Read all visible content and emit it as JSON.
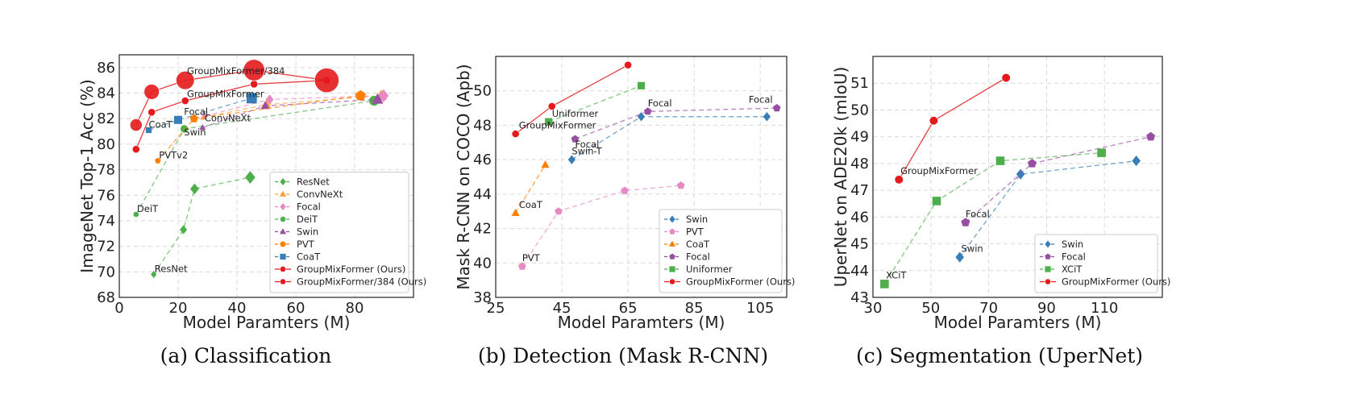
{
  "chart_data": [
    {
      "type": "scatter",
      "caption": "(a) Classification",
      "xlabel": "Model Paramters (M)",
      "ylabel": "ImageNet Top-1 Acc (%)",
      "xlim": [
        0,
        100
      ],
      "ylim": [
        68,
        87
      ],
      "xticks": [
        0,
        20,
        40,
        60,
        80
      ],
      "yticks": [
        68,
        70,
        72,
        74,
        76,
        78,
        80,
        82,
        84,
        86
      ],
      "grid": true,
      "legend_position": "lower-right",
      "series": [
        {
          "name": "ResNet",
          "color": "#4daf4a",
          "marker": "diamond",
          "points": [
            [
              11.7,
              69.8
            ],
            [
              21.8,
              73.3
            ],
            [
              25.6,
              76.5
            ],
            [
              44.5,
              77.4
            ]
          ]
        },
        {
          "name": "ConvNeXt",
          "color": "#ff9f40",
          "marker": "triangle",
          "points": [
            [
              28.6,
              82.1
            ],
            [
              50.0,
              83.1
            ],
            [
              89.0,
              83.8
            ]
          ]
        },
        {
          "name": "Focal",
          "color": "#e78ac3",
          "marker": "diamond",
          "points": [
            [
              29.1,
              82.2
            ],
            [
              51.1,
              83.5
            ],
            [
              89.8,
              83.8
            ]
          ]
        },
        {
          "name": "DeiT",
          "color": "#4daf4a",
          "marker": "circle",
          "points": [
            [
              5.7,
              74.5
            ],
            [
              22.1,
              81.2
            ],
            [
              86.6,
              83.4
            ]
          ]
        },
        {
          "name": "Swin",
          "color": "#984ea3",
          "marker": "triangle",
          "points": [
            [
              28.3,
              81.3
            ],
            [
              49.6,
              83.0
            ],
            [
              87.8,
              83.5
            ]
          ]
        },
        {
          "name": "PVT",
          "color": "#ff7f00",
          "marker": "pentagon",
          "points": [
            [
              13.1,
              78.7
            ],
            [
              25.4,
              82.0
            ],
            [
              82.0,
              83.8
            ]
          ]
        },
        {
          "name": "CoaT",
          "color": "#377eb8",
          "marker": "square",
          "points": [
            [
              10.0,
              81.1
            ],
            [
              20.0,
              81.9
            ],
            [
              45.0,
              83.6
            ]
          ]
        },
        {
          "name": "GroupMixFormer (Ours)",
          "color": "#e41a1c",
          "marker": "circle",
          "points": [
            [
              5.7,
              79.6
            ],
            [
              11.0,
              82.5
            ],
            [
              22.4,
              83.4
            ],
            [
              45.8,
              84.7
            ],
            [
              70.5,
              85.0
            ]
          ]
        },
        {
          "name": "GroupMixFormer/384 (Ours)",
          "color": "#e41a1c",
          "marker": "circle-large",
          "points": [
            [
              5.7,
              81.5
            ],
            [
              11.0,
              84.1
            ],
            [
              22.4,
              85.0
            ],
            [
              45.8,
              85.8
            ],
            [
              70.5,
              85.0
            ]
          ]
        }
      ],
      "annotations": [
        {
          "text": "GroupMixFormer/384",
          "x": 23.0,
          "y": 85.5
        },
        {
          "text": "GroupMixFormer",
          "x": 23.0,
          "y": 83.7
        },
        {
          "text": "Focal",
          "x": 22.0,
          "y": 82.3
        },
        {
          "text": "CoaT",
          "x": 10.0,
          "y": 81.3
        },
        {
          "text": "ConvNeXt",
          "x": 29.0,
          "y": 81.8
        },
        {
          "text": "Swin",
          "x": 22.0,
          "y": 80.7
        },
        {
          "text": "PVTv2",
          "x": 13.5,
          "y": 78.9
        },
        {
          "text": "DeiT",
          "x": 6.0,
          "y": 74.7
        },
        {
          "text": "ResNet",
          "x": 12.0,
          "y": 70.0
        }
      ]
    },
    {
      "type": "scatter",
      "caption": "(b) Detection (Mask R-CNN)",
      "xlabel": "Model Paramters (M)",
      "ylabel": "Mask  R-CNN on COCO (Apb)",
      "xlim": [
        25,
        113
      ],
      "ylim": [
        38,
        52
      ],
      "xticks": [
        25,
        45,
        65,
        85,
        105
      ],
      "yticks": [
        38,
        40,
        42,
        44,
        46,
        48,
        50
      ],
      "grid": true,
      "legend_position": "lower-right",
      "series": [
        {
          "name": "Swin",
          "color": "#377eb8",
          "marker": "diamond",
          "points": [
            [
              48.0,
              46.0
            ],
            [
              69.0,
              48.5
            ],
            [
              107.0,
              48.5
            ]
          ]
        },
        {
          "name": "PVT",
          "color": "#e78ac3",
          "marker": "pentagon",
          "points": [
            [
              33.0,
              39.8
            ],
            [
              44.0,
              43.0
            ],
            [
              64.0,
              44.2
            ],
            [
              81.0,
              44.5
            ]
          ]
        },
        {
          "name": "CoaT",
          "color": "#ff7f00",
          "marker": "triangle",
          "points": [
            [
              31.0,
              42.9
            ],
            [
              40.0,
              45.7
            ]
          ]
        },
        {
          "name": "Focal",
          "color": "#984ea3",
          "marker": "pentagon",
          "points": [
            [
              49.0,
              47.2
            ],
            [
              71.0,
              48.8
            ],
            [
              110.0,
              49.0
            ]
          ]
        },
        {
          "name": "Uniformer",
          "color": "#4daf4a",
          "marker": "square",
          "points": [
            [
              41.0,
              48.2
            ],
            [
              69.0,
              50.3
            ]
          ]
        },
        {
          "name": "GroupMixFormer (Ours)",
          "color": "#e41a1c",
          "marker": "circle",
          "points": [
            [
              31.0,
              47.5
            ],
            [
              42.0,
              49.1
            ],
            [
              65.0,
              51.5
            ]
          ]
        }
      ],
      "annotations": [
        {
          "text": "GroupMixFormer",
          "x": 32.0,
          "y": 47.8
        },
        {
          "text": "Uniformer",
          "x": 42.0,
          "y": 48.5
        },
        {
          "text": "Focal",
          "x": 71.0,
          "y": 49.1
        },
        {
          "text": "Focal",
          "x": 101.5,
          "y": 49.3
        },
        {
          "text": "Focal",
          "x": 49.0,
          "y": 46.7
        },
        {
          "text": "Swin-T",
          "x": 48.0,
          "y": 46.3
        },
        {
          "text": "CoaT",
          "x": 32.0,
          "y": 43.2
        },
        {
          "text": "PVT",
          "x": 33.0,
          "y": 40.1
        }
      ]
    },
    {
      "type": "scatter",
      "caption": "(c) Segmentation (UperNet)",
      "xlabel": "Model Paramters (M)",
      "ylabel": "UperNet on ADE20k (mIoU)",
      "xlim": [
        30,
        130
      ],
      "ylim": [
        43,
        52
      ],
      "xticks": [
        30,
        50,
        70,
        90,
        110
      ],
      "yticks": [
        43,
        44,
        45,
        46,
        47,
        48,
        49,
        50,
        51
      ],
      "grid": true,
      "legend_position": "lower-right",
      "series": [
        {
          "name": "Swin",
          "color": "#377eb8",
          "marker": "diamond",
          "points": [
            [
              60.0,
              44.5
            ],
            [
              81.0,
              47.6
            ],
            [
              121.0,
              48.1
            ]
          ]
        },
        {
          "name": "Focal",
          "color": "#984ea3",
          "marker": "pentagon",
          "points": [
            [
              62.0,
              45.8
            ],
            [
              85.0,
              48.0
            ],
            [
              126.0,
              49.0
            ]
          ]
        },
        {
          "name": "XCiT",
          "color": "#4daf4a",
          "marker": "square",
          "points": [
            [
              34.0,
              43.5
            ],
            [
              52.0,
              46.6
            ],
            [
              74.0,
              48.1
            ],
            [
              109.0,
              48.4
            ]
          ]
        },
        {
          "name": "GroupMixFormer (Ours)",
          "color": "#e41a1c",
          "marker": "circle",
          "points": [
            [
              39.0,
              47.4
            ],
            [
              51.0,
              49.6
            ],
            [
              76.0,
              51.2
            ]
          ]
        }
      ],
      "annotations": [
        {
          "text": "GroupMixFormer",
          "x": 39.5,
          "y": 47.6
        },
        {
          "text": "Focal",
          "x": 62.0,
          "y": 46.0
        },
        {
          "text": "Swin",
          "x": 60.5,
          "y": 44.7
        },
        {
          "text": "XCiT",
          "x": 34.5,
          "y": 43.7
        }
      ]
    }
  ]
}
